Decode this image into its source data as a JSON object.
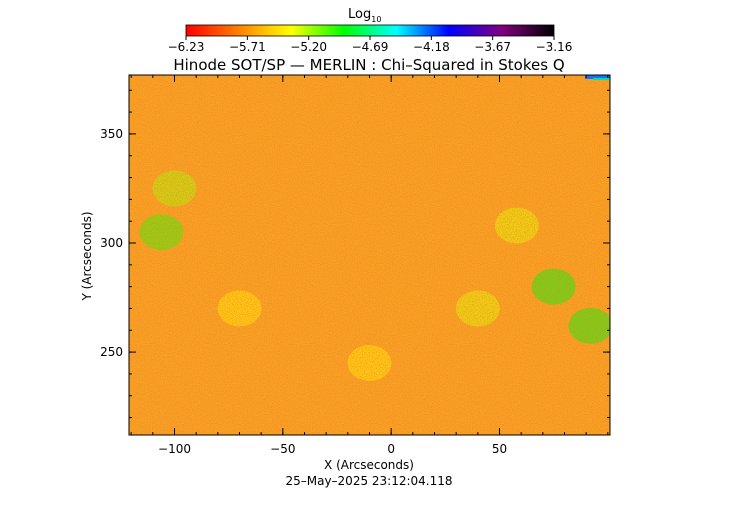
{
  "colorbar": {
    "label": "Log",
    "label_subscript": "10",
    "ticks": [
      "-6.23",
      "-5.71",
      "-5.20",
      "-4.69",
      "-4.18",
      "-3.67",
      "-3.16"
    ],
    "min": -6.23,
    "max": -3.16,
    "colormap": [
      "#ff0000",
      "#ff8000",
      "#ffff00",
      "#00ff00",
      "#00ffff",
      "#0000ff",
      "#800080",
      "#000000"
    ]
  },
  "chart_data": {
    "type": "heatmap",
    "title": "Hinode SOT/SP — MERLIN : Chi–Squared in Stokes Q",
    "xlabel": "X (Arcseconds)",
    "ylabel": "Y (Arcseconds)",
    "xlim": [
      -121,
      101
    ],
    "ylim": [
      212,
      377
    ],
    "xticks": [
      -100,
      -50,
      0,
      50
    ],
    "xtick_labels": [
      "−100",
      "−50",
      "0",
      "50"
    ],
    "yticks": [
      250,
      300,
      350
    ],
    "ytick_labels": [
      "250",
      "300",
      "350"
    ],
    "value_range": [
      -6.23,
      -3.16
    ],
    "typical_value": -5.6,
    "enhanced_regions": [
      {
        "x": -106,
        "y": 305,
        "value": -5.0
      },
      {
        "x": -100,
        "y": 325,
        "value": -5.2
      },
      {
        "x": 58,
        "y": 308,
        "value": -5.3
      },
      {
        "x": 75,
        "y": 280,
        "value": -4.9
      },
      {
        "x": 92,
        "y": 262,
        "value": -4.9
      },
      {
        "x": 40,
        "y": 270,
        "value": -5.3
      },
      {
        "x": -70,
        "y": 270,
        "value": -5.4
      },
      {
        "x": -10,
        "y": 245,
        "value": -5.4
      }
    ]
  },
  "footer": {
    "timestamp": "25–May–2025 23:12:04.118"
  }
}
